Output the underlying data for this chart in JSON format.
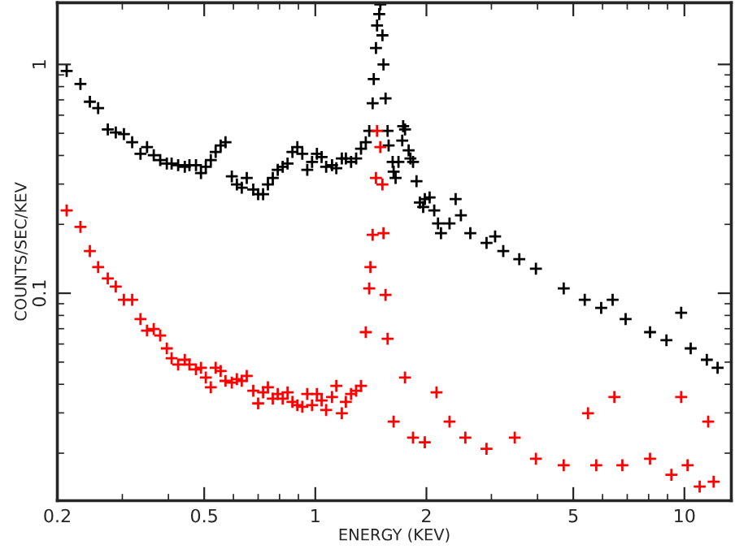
{
  "chart_data": {
    "type": "scatter",
    "xlabel": "ENERGY (KEV)",
    "ylabel": "COUNTS/SEC/KEV",
    "log": "xy",
    "marker": "cross",
    "grid": false,
    "legend": false,
    "xlim": [
      0.2,
      13.4
    ],
    "ylim": [
      0.0124,
      1.86
    ],
    "xticks": [
      0.2,
      0.5,
      1,
      2,
      5,
      10
    ],
    "yticks": [
      0.1,
      1
    ],
    "series": [
      {
        "color": "#000000",
        "x": [
          0.212,
          0.231,
          0.245,
          0.258,
          0.274,
          0.288,
          0.303,
          0.319,
          0.336,
          0.35,
          0.365,
          0.38,
          0.396,
          0.408,
          0.425,
          0.443,
          0.456,
          0.475,
          0.49,
          0.505,
          0.521,
          0.537,
          0.554,
          0.571,
          0.594,
          0.613,
          0.632,
          0.652,
          0.679,
          0.7,
          0.722,
          0.744,
          0.767,
          0.791,
          0.816,
          0.841,
          0.867,
          0.894,
          0.922,
          0.951,
          0.98,
          1.01,
          1.04,
          1.07,
          1.11,
          1.14,
          1.18,
          1.21,
          1.25,
          1.29,
          1.33,
          1.37,
          1.4,
          1.43,
          1.44,
          1.46,
          1.47,
          1.49,
          1.5,
          1.52,
          1.53,
          1.55,
          1.57,
          1.58,
          1.62,
          1.63,
          1.65,
          1.68,
          1.72,
          1.73,
          1.75,
          1.79,
          1.81,
          1.84,
          1.88,
          1.92,
          1.96,
          1.98,
          2.04,
          2.1,
          2.15,
          2.19,
          2.31,
          2.4,
          2.48,
          2.63,
          2.91,
          3.07,
          3.23,
          3.57,
          3.96,
          4.71,
          5.37,
          5.95,
          6.39,
          6.93,
          8.07,
          8.94,
          9.8,
          10.4,
          11.5,
          12.3
        ],
        "values": [
          0.937,
          0.822,
          0.687,
          0.644,
          0.52,
          0.504,
          0.496,
          0.457,
          0.407,
          0.435,
          0.401,
          0.382,
          0.369,
          0.369,
          0.363,
          0.357,
          0.363,
          0.363,
          0.335,
          0.357,
          0.382,
          0.414,
          0.442,
          0.457,
          0.324,
          0.299,
          0.289,
          0.319,
          0.284,
          0.271,
          0.271,
          0.299,
          0.319,
          0.346,
          0.357,
          0.369,
          0.414,
          0.435,
          0.407,
          0.346,
          0.375,
          0.407,
          0.394,
          0.357,
          0.363,
          0.352,
          0.388,
          0.388,
          0.375,
          0.388,
          0.428,
          0.457,
          0.512,
          0.676,
          0.863,
          1.18,
          1.48,
          1.66,
          1.83,
          1.34,
          1.0,
          0.71,
          0.512,
          0.442,
          0.375,
          0.34,
          0.319,
          0.375,
          0.465,
          0.537,
          0.52,
          0.421,
          0.388,
          0.375,
          0.309,
          0.249,
          0.238,
          0.258,
          0.262,
          0.23,
          0.202,
          0.183,
          0.202,
          0.258,
          0.219,
          0.183,
          0.166,
          0.177,
          0.153,
          0.141,
          0.128,
          0.105,
          0.0937,
          0.0863,
          0.0937,
          0.0771,
          0.0676,
          0.0623,
          0.0822,
          0.0574,
          0.0512,
          0.0472
        ]
      },
      {
        "color": "#ff0000",
        "x": [
          0.212,
          0.231,
          0.245,
          0.258,
          0.274,
          0.288,
          0.303,
          0.319,
          0.336,
          0.35,
          0.365,
          0.38,
          0.396,
          0.408,
          0.425,
          0.443,
          0.456,
          0.475,
          0.49,
          0.505,
          0.521,
          0.537,
          0.554,
          0.571,
          0.594,
          0.613,
          0.632,
          0.652,
          0.679,
          0.7,
          0.722,
          0.744,
          0.767,
          0.791,
          0.816,
          0.841,
          0.867,
          0.894,
          0.922,
          0.951,
          0.98,
          1.01,
          1.04,
          1.07,
          1.11,
          1.14,
          1.18,
          1.21,
          1.25,
          1.29,
          1.33,
          1.37,
          1.4,
          1.41,
          1.43,
          1.46,
          1.47,
          1.5,
          1.52,
          1.53,
          1.55,
          1.57,
          1.63,
          1.75,
          1.84,
          1.98,
          2.13,
          2.31,
          2.55,
          2.91,
          3.47,
          3.96,
          4.71,
          5.48,
          5.77,
          6.46,
          6.79,
          8.07,
          9.22,
          9.8,
          10.2,
          11.0,
          11.6,
          12.0
        ],
        "values": [
          0.23,
          0.195,
          0.153,
          0.13,
          0.116,
          0.107,
          0.0937,
          0.0937,
          0.0771,
          0.0687,
          0.0698,
          0.0654,
          0.0574,
          0.052,
          0.0488,
          0.0512,
          0.0488,
          0.0465,
          0.0472,
          0.0428,
          0.0388,
          0.0472,
          0.0457,
          0.0414,
          0.0407,
          0.0421,
          0.0414,
          0.0435,
          0.0375,
          0.033,
          0.0369,
          0.0388,
          0.0346,
          0.0363,
          0.0346,
          0.0369,
          0.0335,
          0.0324,
          0.0319,
          0.0363,
          0.0324,
          0.0363,
          0.034,
          0.0309,
          0.0352,
          0.0394,
          0.0299,
          0.0335,
          0.0363,
          0.0375,
          0.0394,
          0.0676,
          0.105,
          0.13,
          0.18,
          0.319,
          0.512,
          0.435,
          0.299,
          0.183,
          0.0984,
          0.0633,
          0.0275,
          0.0428,
          0.0234,
          0.0223,
          0.0369,
          0.0275,
          0.0234,
          0.0209,
          0.0234,
          0.0189,
          0.0177,
          0.0299,
          0.0177,
          0.0352,
          0.0177,
          0.0189,
          0.0161,
          0.0352,
          0.0177,
          0.0143,
          0.0275,
          0.015
        ]
      }
    ]
  }
}
